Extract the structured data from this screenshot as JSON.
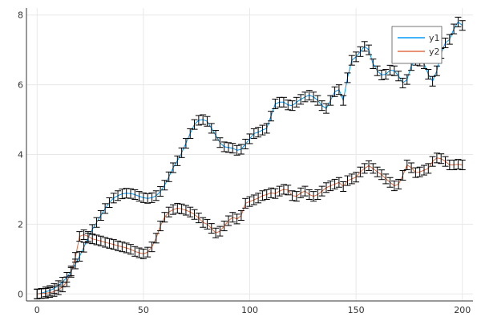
{
  "chart_data": {
    "type": "line",
    "title": "",
    "xlabel": "",
    "ylabel": "",
    "xlim": [
      -5,
      205
    ],
    "ylim": [
      -0.2,
      8.2
    ],
    "grid": true,
    "legend_placement": "top-right",
    "x_ticks": [
      0,
      50,
      100,
      150,
      200
    ],
    "y_ticks": [
      0,
      2,
      4,
      6,
      8
    ],
    "x_tick_labels": [
      "0",
      "50",
      "100",
      "150",
      "200"
    ],
    "y_tick_labels": [
      "0",
      "2",
      "4",
      "6",
      "8"
    ],
    "error_bar_color": "#000000",
    "series": [
      {
        "name": "y1",
        "color": "#009AFA",
        "step": 2,
        "values": [
          0.0,
          0.02,
          0.06,
          0.1,
          0.16,
          0.24,
          0.34,
          0.48,
          0.66,
          0.86,
          1.08,
          1.34,
          1.6,
          1.85,
          2.05,
          2.25,
          2.45,
          2.62,
          2.75,
          2.82,
          2.87,
          2.89,
          2.88,
          2.85,
          2.8,
          2.76,
          2.74,
          2.76,
          2.82,
          2.94,
          3.12,
          3.36,
          3.62,
          3.82,
          4.05,
          4.32,
          4.6,
          4.86,
          4.98,
          5.0,
          4.95,
          4.75,
          4.55,
          4.34,
          4.22,
          4.2,
          4.18,
          4.12,
          4.15,
          4.3,
          4.45,
          4.6,
          4.64,
          4.7,
          4.75,
          5.1,
          5.45,
          5.5,
          5.5,
          5.42,
          5.4,
          5.5,
          5.58,
          5.65,
          5.7,
          5.65,
          5.55,
          5.4,
          5.32,
          5.55,
          5.8,
          5.86,
          5.55,
          6.2,
          6.7,
          6.8,
          6.95,
          7.1,
          7.0,
          6.6,
          6.4,
          6.28,
          6.3,
          6.42,
          6.4,
          6.25,
          6.05,
          6.15,
          6.55,
          6.7,
          6.68,
          6.6,
          6.3,
          6.1,
          6.4,
          6.9,
          7.2,
          7.3,
          7.6,
          7.8,
          7.7
        ]
      },
      {
        "name": "y2",
        "color": "#E26F46",
        "step": 2,
        "values": [
          0.0,
          0.01,
          0.02,
          0.04,
          0.07,
          0.12,
          0.2,
          0.35,
          0.62,
          1.05,
          1.65,
          1.7,
          1.65,
          1.58,
          1.55,
          1.52,
          1.48,
          1.45,
          1.42,
          1.38,
          1.35,
          1.32,
          1.28,
          1.22,
          1.18,
          1.15,
          1.2,
          1.35,
          1.6,
          1.95,
          2.2,
          2.35,
          2.42,
          2.46,
          2.44,
          2.4,
          2.35,
          2.28,
          2.18,
          2.05,
          2.0,
          1.88,
          1.75,
          1.8,
          1.95,
          2.1,
          2.2,
          2.15,
          2.25,
          2.6,
          2.65,
          2.7,
          2.75,
          2.82,
          2.85,
          2.9,
          2.88,
          2.95,
          3.0,
          2.98,
          2.82,
          2.8,
          2.9,
          2.95,
          2.85,
          2.8,
          2.85,
          2.95,
          3.05,
          3.1,
          3.15,
          3.2,
          3.08,
          3.25,
          3.3,
          3.35,
          3.5,
          3.6,
          3.68,
          3.6,
          3.5,
          3.42,
          3.3,
          3.2,
          3.1,
          3.15,
          3.4,
          3.7,
          3.62,
          3.48,
          3.5,
          3.55,
          3.6,
          3.8,
          3.9,
          3.88,
          3.8,
          3.7,
          3.7,
          3.72,
          3.7
        ]
      }
    ]
  }
}
